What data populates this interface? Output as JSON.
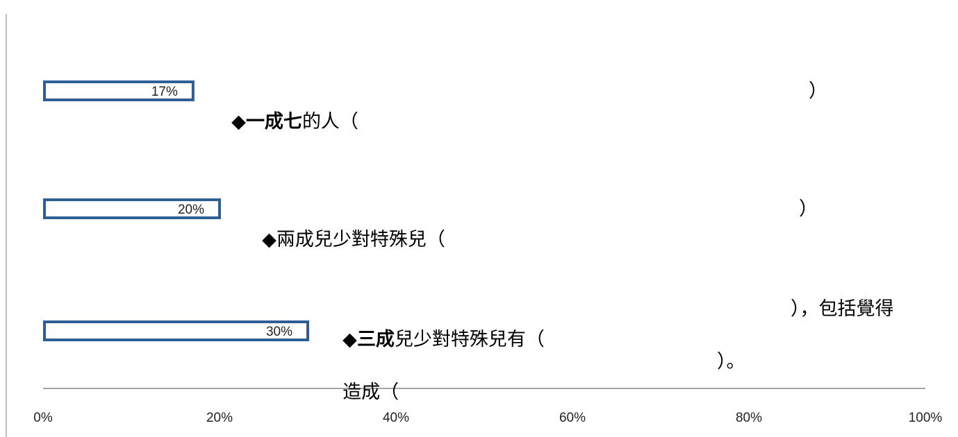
{
  "chart_data": {
    "type": "bar",
    "orientation": "horizontal",
    "categories": [
      "17%",
      "20%",
      "30%"
    ],
    "values": [
      17,
      20,
      30
    ],
    "value_labels": [
      "17%",
      "20%",
      "30%"
    ],
    "xlim": [
      0,
      100
    ],
    "x_ticks": [
      "0%",
      "20%",
      "40%",
      "60%",
      "80%",
      "100%"
    ],
    "bar_fill": "#ffffff",
    "bar_border": "#2e5f94",
    "axis_color": "#a6a6a6",
    "title": "",
    "xlabel": "",
    "ylabel": "",
    "grid": false
  },
  "annotations": [
    {
      "marker": "◆",
      "bold": "一成七",
      "rest": "的人（",
      "close": "）"
    },
    {
      "marker": "◆",
      "bold": "",
      "rest": "兩成兒少對特殊兒（",
      "close": "）"
    },
    {
      "marker": "◆",
      "bold": "三成",
      "rest": "兒少對特殊兒有（",
      "close": "），包括覺得",
      "line2": "造成（",
      "line2_close": "）。"
    }
  ]
}
